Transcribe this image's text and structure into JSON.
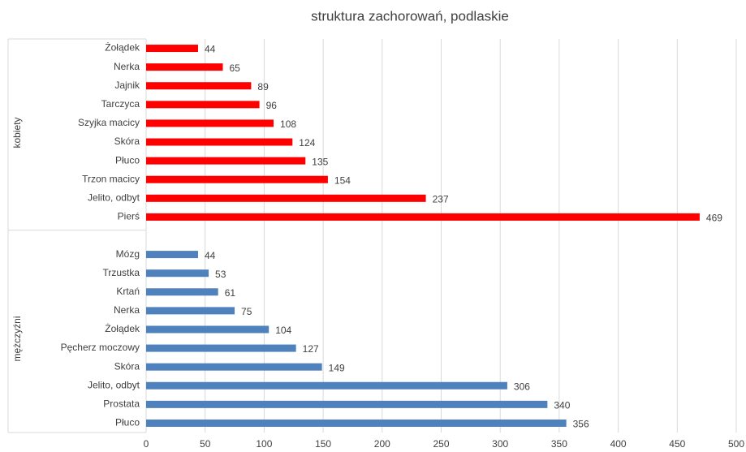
{
  "chart_data": {
    "type": "bar",
    "title": "struktura zachorowań, podlaskie",
    "groups": [
      {
        "name": "kobiety",
        "color": "#ff0000",
        "categories": [
          "Żołądek",
          "Nerka",
          "Jajnik",
          "Tarczyca",
          "Szyjka macicy",
          "Skóra",
          "Płuco",
          "Trzon macicy",
          "Jelito, odbyt",
          "Pierś"
        ],
        "values": [
          44,
          65,
          89,
          96,
          108,
          124,
          135,
          154,
          237,
          469
        ]
      },
      {
        "name": "mężczyźni",
        "color": "#4f81bd",
        "categories": [
          "Mózg",
          "Trzustka",
          "Krtań",
          "Nerka",
          "Żołądek",
          "Pęcherz moczowy",
          "Skóra",
          "Jelito, odbyt",
          "Prostata",
          "Płuco"
        ],
        "values": [
          44,
          53,
          61,
          75,
          104,
          127,
          149,
          306,
          340,
          356
        ]
      }
    ],
    "xlim": [
      0,
      500
    ],
    "xticks": [
      0,
      50,
      100,
      150,
      200,
      250,
      300,
      350,
      400,
      450,
      500
    ],
    "grid": true
  }
}
